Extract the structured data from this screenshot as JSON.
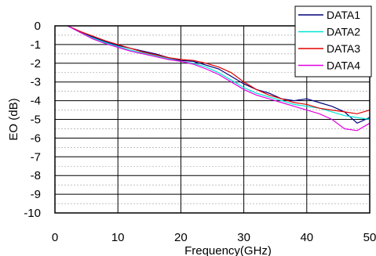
{
  "chart_data": {
    "type": "line",
    "title": "",
    "xlabel": "Frequency(GHz)",
    "ylabel": "EO (dB)",
    "xlim": [
      0,
      50
    ],
    "ylim": [
      -10,
      0
    ],
    "x_ticks": [
      "0",
      "10",
      "20",
      "30",
      "40",
      "50"
    ],
    "y_ticks": [
      "0",
      "-1",
      "-2",
      "-3",
      "-4",
      "-5",
      "-6",
      "-7",
      "-8",
      "-9",
      "-10"
    ],
    "grid": true,
    "legend_position": "top-right",
    "series": [
      {
        "name": "DATA1",
        "color": "#00007a",
        "points": [
          [
            2,
            0
          ],
          [
            4,
            -0.3
          ],
          [
            6,
            -0.6
          ],
          [
            8,
            -0.85
          ],
          [
            10,
            -1.05
          ],
          [
            12,
            -1.2
          ],
          [
            14,
            -1.35
          ],
          [
            16,
            -1.5
          ],
          [
            18,
            -1.7
          ],
          [
            20,
            -1.85
          ],
          [
            22,
            -1.9
          ],
          [
            24,
            -2.1
          ],
          [
            26,
            -2.3
          ],
          [
            28,
            -2.7
          ],
          [
            30,
            -3.1
          ],
          [
            32,
            -3.4
          ],
          [
            34,
            -3.6
          ],
          [
            36,
            -3.9
          ],
          [
            38,
            -4.0
          ],
          [
            40,
            -3.9
          ],
          [
            42,
            -4.1
          ],
          [
            44,
            -4.3
          ],
          [
            46,
            -4.6
          ],
          [
            48,
            -5.2
          ],
          [
            50,
            -4.9
          ]
        ]
      },
      {
        "name": "DATA2",
        "color": "#00e5d5",
        "points": [
          [
            2,
            0
          ],
          [
            4,
            -0.35
          ],
          [
            6,
            -0.65
          ],
          [
            8,
            -0.9
          ],
          [
            10,
            -1.1
          ],
          [
            12,
            -1.3
          ],
          [
            14,
            -1.45
          ],
          [
            16,
            -1.6
          ],
          [
            18,
            -1.75
          ],
          [
            20,
            -1.9
          ],
          [
            22,
            -2.0
          ],
          [
            24,
            -2.2
          ],
          [
            26,
            -2.5
          ],
          [
            28,
            -2.9
          ],
          [
            30,
            -3.3
          ],
          [
            32,
            -3.6
          ],
          [
            34,
            -3.8
          ],
          [
            36,
            -4.0
          ],
          [
            38,
            -4.2
          ],
          [
            40,
            -4.3
          ],
          [
            42,
            -4.4
          ],
          [
            44,
            -4.6
          ],
          [
            46,
            -4.8
          ],
          [
            48,
            -4.9
          ],
          [
            50,
            -5.0
          ]
        ]
      },
      {
        "name": "DATA3",
        "color": "#e00000",
        "points": [
          [
            2,
            0
          ],
          [
            4,
            -0.3
          ],
          [
            6,
            -0.55
          ],
          [
            8,
            -0.8
          ],
          [
            10,
            -1.0
          ],
          [
            12,
            -1.2
          ],
          [
            14,
            -1.4
          ],
          [
            16,
            -1.55
          ],
          [
            18,
            -1.7
          ],
          [
            20,
            -1.8
          ],
          [
            22,
            -1.85
          ],
          [
            24,
            -2.0
          ],
          [
            26,
            -2.2
          ],
          [
            28,
            -2.5
          ],
          [
            30,
            -3.0
          ],
          [
            32,
            -3.4
          ],
          [
            34,
            -3.7
          ],
          [
            36,
            -3.9
          ],
          [
            38,
            -4.1
          ],
          [
            40,
            -4.2
          ],
          [
            42,
            -4.4
          ],
          [
            44,
            -4.5
          ],
          [
            46,
            -4.6
          ],
          [
            48,
            -4.7
          ],
          [
            50,
            -4.5
          ]
        ]
      },
      {
        "name": "DATA4",
        "color": "#e000e0",
        "points": [
          [
            2,
            0
          ],
          [
            4,
            -0.35
          ],
          [
            6,
            -0.7
          ],
          [
            8,
            -0.95
          ],
          [
            10,
            -1.15
          ],
          [
            12,
            -1.35
          ],
          [
            14,
            -1.5
          ],
          [
            16,
            -1.65
          ],
          [
            18,
            -1.8
          ],
          [
            20,
            -1.9
          ],
          [
            22,
            -2.05
          ],
          [
            24,
            -2.3
          ],
          [
            26,
            -2.6
          ],
          [
            28,
            -3.0
          ],
          [
            30,
            -3.4
          ],
          [
            32,
            -3.7
          ],
          [
            34,
            -3.9
          ],
          [
            36,
            -4.1
          ],
          [
            38,
            -4.3
          ],
          [
            40,
            -4.5
          ],
          [
            42,
            -4.7
          ],
          [
            44,
            -5.0
          ],
          [
            46,
            -5.5
          ],
          [
            48,
            -5.6
          ],
          [
            50,
            -5.2
          ]
        ]
      }
    ]
  }
}
